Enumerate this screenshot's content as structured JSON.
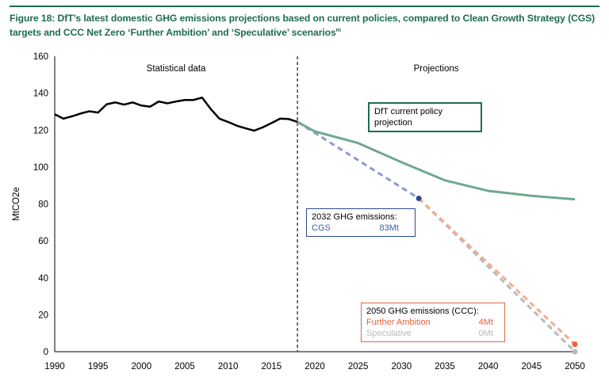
{
  "title": "Figure 18: DfT’s latest domestic GHG emissions projections based on current policies, compared to Clean Growth Strategy (CGS) targets and CCC Net Zero ‘Further Ambition’ and ‘Speculative’ scenarios",
  "title_superscript": "m",
  "colors": {
    "title": "#1e6b53",
    "historical": "#000000",
    "dft": "#6fa88f",
    "cgs": "#8e99d2",
    "cgs_marker": "#2b4a8c",
    "further": "#f2ad8f",
    "further_marker": "#e8613c",
    "speculative": "#b9b9b9"
  },
  "chart_data": {
    "type": "line",
    "ylabel": "MtCO2e",
    "ylim": [
      0,
      160
    ],
    "xlim": [
      1990,
      2050
    ],
    "yticks": [
      0,
      20,
      40,
      60,
      80,
      100,
      120,
      140,
      160
    ],
    "xticks": [
      1990,
      1995,
      2000,
      2005,
      2010,
      2015,
      2020,
      2025,
      2030,
      2035,
      2040,
      2045,
      2050
    ],
    "grid": false,
    "divider_year": 2018,
    "region_labels": [
      "Statistical data",
      "Projections"
    ],
    "series": [
      {
        "key": "historical",
        "x": [
          1990,
          1991,
          1992,
          1993,
          1994,
          1995,
          1996,
          1997,
          1998,
          1999,
          2000,
          2001,
          2002,
          2003,
          2004,
          2005,
          2006,
          2007,
          2008,
          2009,
          2010,
          2011,
          2012,
          2013,
          2014,
          2015,
          2016,
          2017,
          2018
        ],
        "y": [
          128.6,
          126.2,
          127.5,
          129,
          130.2,
          129.5,
          134,
          135,
          133.8,
          135,
          133.3,
          132.7,
          135.5,
          134.5,
          135.5,
          136.3,
          136.3,
          137.6,
          131.4,
          126.2,
          124.4,
          122.4,
          121,
          119.7,
          121.5,
          123.8,
          126.2,
          126,
          124.4
        ]
      },
      {
        "key": "dft",
        "name": "DfT current policy projection",
        "x": [
          2018,
          2020,
          2025,
          2030,
          2035,
          2040,
          2045,
          2050
        ],
        "y": [
          124.4,
          119.3,
          113,
          102.6,
          92.8,
          87.1,
          84.4,
          82.5
        ]
      },
      {
        "key": "cgs",
        "x": [
          2018,
          2032
        ],
        "y": [
          124.4,
          83
        ],
        "dashed": true
      },
      {
        "key": "further",
        "x": [
          2032,
          2050
        ],
        "y": [
          83,
          4
        ],
        "dashed": true
      },
      {
        "key": "speculative",
        "x": [
          2032,
          2050
        ],
        "y": [
          83,
          0
        ],
        "dashed": true
      }
    ],
    "annotations": {
      "dft_label": "DfT current policy projection",
      "cgs_box": {
        "heading": "2032 GHG emissions:",
        "label": "CGS",
        "value": "83Mt"
      },
      "ccc_box": {
        "heading": "2050 GHG emissions (CCC):",
        "rows": [
          {
            "label": "Further Ambition",
            "value": "4Mt"
          },
          {
            "label": "Speculative",
            "value": "0Mt"
          }
        ]
      }
    }
  }
}
